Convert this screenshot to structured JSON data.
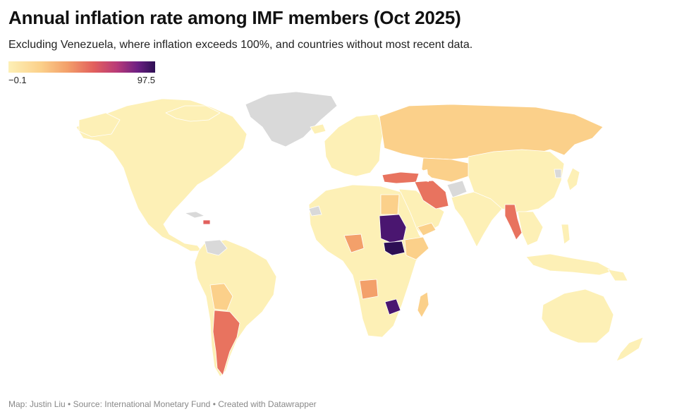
{
  "header": {
    "title": "Annual inflation rate among IMF members (Oct 2025)",
    "subtitle": "Excluding Venezuela, where inflation exceeds 100%, and countries without most recent data."
  },
  "legend": {
    "min_label": "−0.1",
    "max_label": "97.5",
    "min_value": -0.1,
    "max_value": 97.5,
    "colors": [
      "#fdf0b6",
      "#fbd08a",
      "#f3a06a",
      "#e2605d",
      "#b83a78",
      "#6d1f83",
      "#2d0f54"
    ],
    "no_data_color": "#d9d9d9"
  },
  "map": {
    "highlighted_regions": [
      {
        "name": "Sudan",
        "level": "very high"
      },
      {
        "name": "South Sudan",
        "level": "very high"
      },
      {
        "name": "Zimbabwe",
        "level": "very high"
      },
      {
        "name": "Argentina",
        "level": "high"
      },
      {
        "name": "Turkey",
        "level": "high"
      },
      {
        "name": "Iran",
        "level": "high"
      },
      {
        "name": "Myanmar",
        "level": "high"
      },
      {
        "name": "Russia",
        "level": "moderate"
      },
      {
        "name": "Nigeria",
        "level": "moderate"
      },
      {
        "name": "Angola",
        "level": "moderate"
      },
      {
        "name": "Egypt",
        "level": "moderate"
      },
      {
        "name": "Bolivia",
        "level": "moderate"
      },
      {
        "name": "Yemen",
        "level": "moderate"
      }
    ]
  },
  "footer": {
    "credit": "Map: Justin Liu • Source: International Monetary Fund • Created with Datawrapper"
  }
}
